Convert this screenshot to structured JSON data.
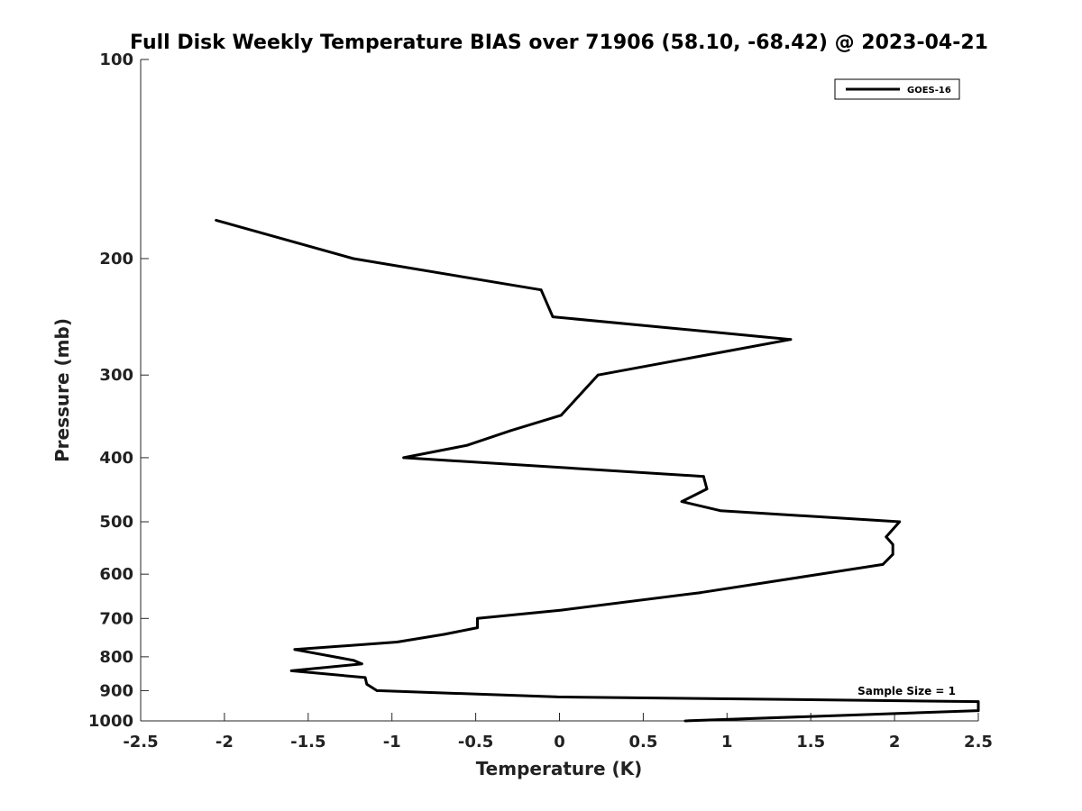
{
  "chart_data": {
    "type": "line",
    "title": "Full Disk Weekly Temperature BIAS over 71906 (58.10, -68.42) @ 2023-04-21",
    "xlabel": "Temperature (K)",
    "ylabel": "Pressure (mb)",
    "xlim": [
      -2.5,
      2.5
    ],
    "ylim": [
      100,
      1000
    ],
    "y_scale": "log",
    "y_reversed": true,
    "x_ticks": [
      "-2.5",
      "-2",
      "-1.5",
      "-1",
      "-0.5",
      "0",
      "0.5",
      "1",
      "1.5",
      "2",
      "2.5"
    ],
    "y_ticks": [
      "100",
      "200",
      "300",
      "400",
      "500",
      "600",
      "700",
      "800",
      "900",
      "1000"
    ],
    "grid": false,
    "legend_position": "top-right",
    "line_color": "#000000",
    "annotation": "Sample Size = 1",
    "series": [
      {
        "name": "GOES-16",
        "points": [
          {
            "x": -2.05,
            "y": 175
          },
          {
            "x": -1.23,
            "y": 200
          },
          {
            "x": -0.11,
            "y": 223
          },
          {
            "x": -0.04,
            "y": 245
          },
          {
            "x": 1.38,
            "y": 265
          },
          {
            "x": 0.23,
            "y": 300
          },
          {
            "x": 0.01,
            "y": 345
          },
          {
            "x": -0.29,
            "y": 364
          },
          {
            "x": -0.55,
            "y": 383
          },
          {
            "x": -0.93,
            "y": 400
          },
          {
            "x": 0.86,
            "y": 427
          },
          {
            "x": 0.88,
            "y": 446
          },
          {
            "x": 0.73,
            "y": 466
          },
          {
            "x": 0.96,
            "y": 481
          },
          {
            "x": 2.03,
            "y": 500
          },
          {
            "x": 1.95,
            "y": 527
          },
          {
            "x": 1.99,
            "y": 541
          },
          {
            "x": 1.99,
            "y": 560
          },
          {
            "x": 1.93,
            "y": 580
          },
          {
            "x": 0.84,
            "y": 640
          },
          {
            "x": 0.01,
            "y": 680
          },
          {
            "x": -0.49,
            "y": 700
          },
          {
            "x": -0.49,
            "y": 723
          },
          {
            "x": -0.69,
            "y": 740
          },
          {
            "x": -0.97,
            "y": 760
          },
          {
            "x": -1.58,
            "y": 780
          },
          {
            "x": -1.23,
            "y": 810
          },
          {
            "x": -1.18,
            "y": 820
          },
          {
            "x": -1.6,
            "y": 840
          },
          {
            "x": -1.16,
            "y": 860
          },
          {
            "x": -1.15,
            "y": 880
          },
          {
            "x": -1.09,
            "y": 900
          },
          {
            "x": -0.01,
            "y": 920
          },
          {
            "x": 2.5,
            "y": 935
          },
          {
            "x": 2.5,
            "y": 965
          },
          {
            "x": 0.75,
            "y": 1000
          }
        ]
      }
    ]
  }
}
